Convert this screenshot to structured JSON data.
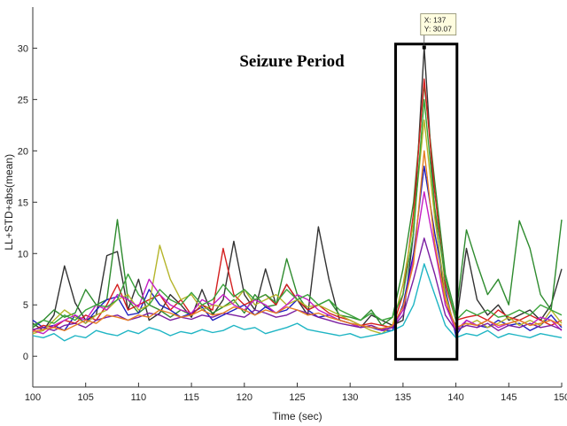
{
  "chart_data": {
    "type": "line",
    "title": "",
    "xlabel": "Time (sec)",
    "ylabel": "LL+STD+abs(mean)",
    "xlim": [
      100,
      150
    ],
    "ylim": [
      -3,
      34
    ],
    "xticks": [
      "100",
      "105",
      "110",
      "115",
      "120",
      "125",
      "130",
      "135",
      "140",
      "145",
      "150"
    ],
    "yticks": [
      "0",
      "5",
      "10",
      "15",
      "20",
      "25",
      "30"
    ],
    "grid": false,
    "annotation": {
      "text": "Seizure Period",
      "box_x": [
        134.3,
        140.1
      ],
      "box_y": [
        -0.3,
        30.4
      ]
    },
    "datatip": {
      "x_label": "X: 137",
      "y_label": "Y: 30.07",
      "x": 137,
      "y": 30.07
    },
    "x": [
      100,
      101,
      102,
      103,
      104,
      105,
      106,
      107,
      108,
      109,
      110,
      111,
      112,
      113,
      114,
      115,
      116,
      117,
      118,
      119,
      120,
      121,
      122,
      123,
      124,
      125,
      126,
      127,
      128,
      129,
      130,
      131,
      132,
      133,
      134,
      135,
      136,
      137,
      138,
      139,
      140,
      141,
      142,
      143,
      144,
      145,
      146,
      147,
      148,
      149,
      150
    ],
    "series": [
      {
        "color": "#333333",
        "values": [
          3.2,
          2.5,
          4.0,
          8.8,
          5.2,
          3.5,
          4.0,
          9.8,
          10.2,
          4.5,
          7.5,
          3.5,
          4.2,
          6.0,
          5.0,
          3.8,
          6.5,
          4.0,
          5.5,
          11.2,
          6.0,
          4.5,
          8.5,
          5.0,
          7.0,
          5.5,
          4.0,
          12.6,
          7.5,
          3.5,
          3.2,
          2.8,
          4.0,
          3.5,
          3.0,
          3.5,
          12.0,
          30.07,
          14.0,
          5.0,
          3.0,
          10.5,
          5.5,
          4.0,
          5.0,
          3.5,
          4.0,
          4.5,
          3.5,
          5.0,
          8.5
        ]
      },
      {
        "color": "#2e8b2e",
        "values": [
          2.8,
          3.5,
          4.5,
          3.8,
          4.2,
          6.5,
          5.0,
          5.5,
          13.3,
          5.5,
          4.2,
          5.0,
          4.5,
          3.8,
          4.5,
          4.0,
          5.0,
          4.2,
          4.8,
          5.5,
          4.2,
          6.0,
          4.8,
          5.0,
          9.5,
          6.0,
          4.5,
          5.0,
          5.5,
          4.0,
          3.8,
          3.5,
          4.5,
          3.0,
          3.8,
          8.5,
          15.0,
          26.5,
          17.0,
          8.0,
          4.0,
          12.3,
          9.0,
          6.0,
          7.5,
          5.0,
          13.2,
          10.5,
          6.0,
          4.5,
          13.3
        ]
      },
      {
        "color": "#1f1fbf",
        "values": [
          3.5,
          2.8,
          3.0,
          2.5,
          4.0,
          3.2,
          4.5,
          5.5,
          5.8,
          4.0,
          4.2,
          6.5,
          5.0,
          4.5,
          3.8,
          4.2,
          4.8,
          3.5,
          4.0,
          4.5,
          5.0,
          4.0,
          4.8,
          4.2,
          4.5,
          5.5,
          4.5,
          3.8,
          4.0,
          3.5,
          3.2,
          3.0,
          2.8,
          2.5,
          2.5,
          5.0,
          10.0,
          18.5,
          12.0,
          6.5,
          2.0,
          3.5,
          3.0,
          2.8,
          3.5,
          3.0,
          3.2,
          2.5,
          3.0,
          4.0,
          2.8
        ]
      },
      {
        "color": "#d41f1f",
        "values": [
          2.5,
          3.0,
          2.8,
          3.5,
          3.2,
          4.0,
          3.5,
          5.0,
          7.0,
          4.5,
          5.0,
          5.5,
          6.0,
          4.5,
          5.5,
          4.0,
          5.0,
          4.5,
          10.5,
          6.0,
          5.0,
          5.5,
          6.0,
          5.0,
          7.0,
          5.5,
          4.5,
          5.0,
          4.2,
          3.8,
          3.5,
          3.0,
          3.2,
          3.0,
          2.8,
          6.0,
          14.0,
          27.0,
          16.0,
          7.0,
          3.5,
          3.8,
          4.0,
          3.5,
          4.5,
          3.8,
          3.5,
          4.0,
          3.5,
          3.0,
          3.5
        ]
      },
      {
        "color": "#b5b52a",
        "values": [
          2.2,
          2.5,
          3.5,
          4.5,
          3.8,
          3.2,
          4.0,
          4.5,
          5.5,
          6.0,
          4.5,
          5.0,
          10.8,
          7.5,
          5.5,
          6.0,
          4.5,
          5.0,
          4.8,
          5.2,
          6.5,
          5.0,
          5.5,
          6.0,
          5.0,
          5.5,
          4.8,
          5.0,
          4.5,
          4.0,
          3.5,
          3.0,
          2.5,
          2.2,
          3.0,
          7.0,
          13.0,
          23.0,
          13.5,
          6.0,
          2.5,
          3.0,
          3.5,
          2.8,
          3.2,
          3.8,
          3.0,
          3.5,
          3.0,
          4.5,
          3.2
        ]
      },
      {
        "color": "#c41fc4",
        "values": [
          2.5,
          2.2,
          3.0,
          3.5,
          4.0,
          3.5,
          5.0,
          4.5,
          6.0,
          5.5,
          4.8,
          7.5,
          6.0,
          5.0,
          4.5,
          4.2,
          5.5,
          5.0,
          6.0,
          5.0,
          4.5,
          5.5,
          5.0,
          4.2,
          5.0,
          6.0,
          5.5,
          4.5,
          4.0,
          3.5,
          3.2,
          2.8,
          3.0,
          2.5,
          2.8,
          4.5,
          9.5,
          16.0,
          10.5,
          5.0,
          2.5,
          3.5,
          3.0,
          3.5,
          2.8,
          3.2,
          3.5,
          3.0,
          3.8,
          3.5,
          2.5
        ]
      },
      {
        "color": "#1fb5c4",
        "values": [
          2.0,
          1.8,
          2.2,
          1.5,
          2.0,
          1.8,
          2.5,
          2.2,
          2.0,
          2.5,
          2.2,
          2.8,
          2.5,
          2.0,
          2.4,
          2.2,
          2.6,
          2.3,
          2.5,
          3.0,
          2.6,
          2.8,
          2.2,
          2.5,
          2.8,
          3.2,
          2.6,
          2.4,
          2.2,
          2.0,
          2.2,
          1.8,
          2.0,
          2.2,
          2.5,
          3.0,
          5.0,
          9.0,
          6.0,
          3.0,
          1.8,
          2.2,
          2.0,
          2.5,
          1.8,
          2.2,
          2.0,
          1.8,
          2.2,
          2.0,
          1.8
        ]
      },
      {
        "color": "#3aa33a",
        "values": [
          3.0,
          3.5,
          3.2,
          4.0,
          3.5,
          4.5,
          5.0,
          4.8,
          5.5,
          8.0,
          6.0,
          5.0,
          6.5,
          5.5,
          5.0,
          6.2,
          5.0,
          5.5,
          7.0,
          5.8,
          6.5,
          5.5,
          6.0,
          5.2,
          6.5,
          5.5,
          6.0,
          5.0,
          5.5,
          4.5,
          4.0,
          3.5,
          4.2,
          3.5,
          3.8,
          6.0,
          12.0,
          25.0,
          14.5,
          7.5,
          3.5,
          4.5,
          4.0,
          4.5,
          3.8,
          4.0,
          4.5,
          4.0,
          5.0,
          4.5,
          4.0
        ]
      },
      {
        "color": "#7b1fa2",
        "values": [
          2.6,
          2.8,
          2.5,
          3.0,
          3.2,
          2.8,
          3.5,
          3.8,
          4.0,
          3.5,
          3.8,
          4.2,
          4.0,
          3.5,
          3.8,
          3.6,
          4.0,
          3.8,
          4.2,
          4.0,
          3.8,
          4.5,
          4.2,
          3.8,
          4.0,
          4.5,
          4.2,
          3.8,
          3.5,
          3.2,
          3.0,
          2.8,
          3.0,
          2.6,
          2.8,
          4.0,
          7.5,
          11.5,
          8.0,
          4.0,
          2.5,
          3.0,
          2.8,
          3.2,
          2.5,
          3.0,
          2.8,
          3.2,
          2.8,
          3.0,
          2.6
        ]
      },
      {
        "color": "#e67e22",
        "values": [
          2.4,
          2.6,
          2.8,
          2.5,
          3.0,
          3.5,
          3.2,
          4.0,
          3.8,
          3.5,
          4.0,
          3.8,
          4.5,
          4.2,
          3.8,
          4.0,
          4.5,
          4.0,
          4.2,
          4.8,
          4.5,
          4.0,
          4.5,
          4.2,
          4.8,
          4.5,
          4.0,
          4.2,
          3.8,
          3.5,
          3.2,
          3.0,
          2.8,
          2.7,
          3.0,
          4.8,
          9.0,
          20.0,
          11.0,
          5.5,
          2.8,
          3.2,
          3.0,
          3.5,
          3.0,
          3.2,
          3.5,
          3.0,
          3.2,
          3.5,
          3.0
        ]
      }
    ]
  }
}
